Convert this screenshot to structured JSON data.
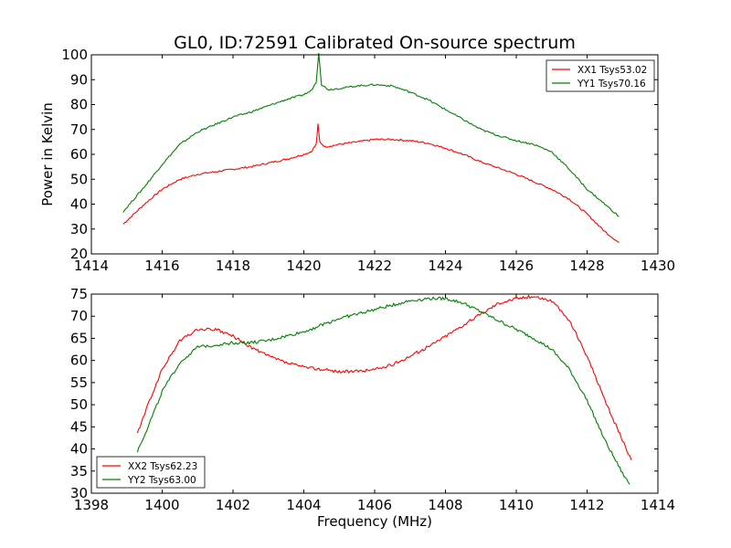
{
  "figure": {
    "title": "GL0, ID:72591 Calibrated On-source spectrum",
    "xlabel": "Frequency (MHz)",
    "ylabel": "Power in Kelvin"
  },
  "chart_data": [
    {
      "type": "line",
      "title": "GL0, ID:72591 Calibrated On-source spectrum",
      "xlabel": "",
      "ylabel": "Power in Kelvin",
      "xlim": [
        1414,
        1430
      ],
      "ylim": [
        20,
        100
      ],
      "xticks": [
        1414,
        1416,
        1418,
        1420,
        1422,
        1424,
        1426,
        1428,
        1430
      ],
      "yticks": [
        20,
        30,
        40,
        50,
        60,
        70,
        80,
        90,
        100
      ],
      "legend_position": "top-right",
      "series": [
        {
          "name": "XX1 Tsys53.02",
          "color": "#ff0000",
          "x": [
            1414.9,
            1415.5,
            1416,
            1416.5,
            1417,
            1417.5,
            1418,
            1418.5,
            1419,
            1419.5,
            1420,
            1420.2,
            1420.35,
            1420.4,
            1420.45,
            1420.6,
            1421,
            1421.5,
            1422,
            1422.5,
            1423,
            1423.5,
            1424,
            1424.5,
            1425,
            1425.5,
            1426,
            1426.5,
            1427,
            1427.5,
            1428,
            1428.5,
            1428.9
          ],
          "y": [
            32,
            40,
            46,
            50,
            52,
            53,
            54,
            55,
            56.5,
            58,
            60,
            61,
            64,
            72,
            65,
            63,
            64,
            65,
            66,
            66,
            65.5,
            64.5,
            62.5,
            60,
            57,
            54.5,
            52,
            49,
            46,
            42,
            36,
            29,
            24.5
          ]
        },
        {
          "name": "YY1 Tsys70.16",
          "color": "#008000",
          "x": [
            1414.9,
            1415.5,
            1416,
            1416.5,
            1417,
            1417.5,
            1418,
            1418.5,
            1419,
            1419.5,
            1420,
            1420.2,
            1420.35,
            1420.42,
            1420.5,
            1420.7,
            1421,
            1421.5,
            1422,
            1422.5,
            1423,
            1423.5,
            1424,
            1424.5,
            1425,
            1425.5,
            1426,
            1426.5,
            1427,
            1427.5,
            1428,
            1428.5,
            1428.9
          ],
          "y": [
            37,
            47,
            56,
            64,
            69,
            72,
            75,
            77,
            79.5,
            82,
            84,
            85.5,
            89,
            101,
            88,
            86,
            86.5,
            87.5,
            88,
            87.5,
            85,
            82,
            78,
            74,
            70,
            67.5,
            65.5,
            64,
            61,
            54,
            46,
            40,
            35
          ]
        }
      ]
    },
    {
      "type": "line",
      "title": "",
      "xlabel": "Frequency (MHz)",
      "ylabel": "",
      "xlim": [
        1398,
        1414
      ],
      "ylim": [
        30,
        75
      ],
      "xticks": [
        1398,
        1400,
        1402,
        1404,
        1406,
        1408,
        1410,
        1412,
        1414
      ],
      "yticks": [
        30,
        35,
        40,
        45,
        50,
        55,
        60,
        65,
        70,
        75
      ],
      "legend_position": "bottom-left",
      "series": [
        {
          "name": "XX2 Tsys62.23",
          "color": "#ff0000",
          "x": [
            1399.3,
            1399.6,
            1400,
            1400.5,
            1401,
            1401.5,
            1402,
            1402.5,
            1403,
            1403.5,
            1404,
            1404.5,
            1405,
            1405.5,
            1406,
            1406.5,
            1407,
            1407.5,
            1408,
            1408.5,
            1409,
            1409.5,
            1410,
            1410.5,
            1411,
            1411.5,
            1412,
            1412.5,
            1413,
            1413.25
          ],
          "y": [
            43.5,
            50,
            58,
            64.5,
            67,
            67,
            65.5,
            63,
            61,
            59.5,
            58.5,
            58,
            57.5,
            57.5,
            58,
            59,
            61,
            63,
            65.5,
            68,
            70.5,
            73,
            74,
            74.5,
            73.5,
            69,
            61,
            51,
            42,
            37.5
          ]
        },
        {
          "name": "YY2 Tsys63.00",
          "color": "#008000",
          "x": [
            1399.3,
            1399.6,
            1400,
            1400.5,
            1401,
            1401.5,
            1402,
            1402.5,
            1403,
            1403.5,
            1404,
            1404.5,
            1405,
            1405.5,
            1406,
            1406.5,
            1407,
            1407.5,
            1408,
            1408.5,
            1409,
            1409.5,
            1410,
            1410.5,
            1411,
            1411.5,
            1412,
            1412.5,
            1413,
            1413.2
          ],
          "y": [
            39.5,
            45,
            53,
            59.5,
            63,
            63.5,
            64,
            64,
            64.5,
            65.5,
            66.5,
            68,
            69.5,
            70.5,
            71.5,
            72.5,
            73.5,
            74,
            74,
            73,
            71,
            69,
            67,
            65,
            62.5,
            58,
            51,
            42,
            34.5,
            32
          ]
        }
      ]
    }
  ]
}
